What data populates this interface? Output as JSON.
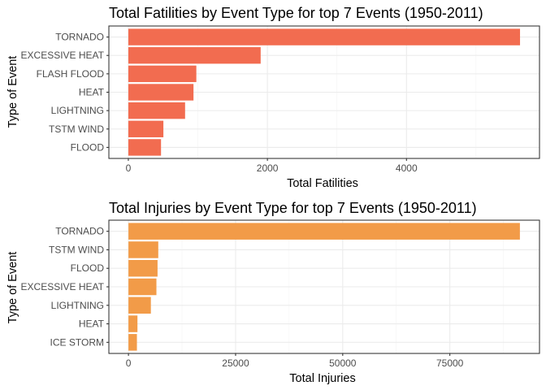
{
  "chart_data": [
    {
      "type": "bar",
      "orientation": "horizontal",
      "title": "Total Fatilities by Event Type for top 7 Events (1950-2011)",
      "xlabel": "Total Fatilities",
      "ylabel": "Type of Event",
      "categories": [
        "TORNADO",
        "EXCESSIVE HEAT",
        "FLASH FLOOD",
        "HEAT",
        "LIGHTNING",
        "TSTM WIND",
        "FLOOD"
      ],
      "values": [
        5633,
        1903,
        978,
        937,
        816,
        504,
        470
      ],
      "x_ticks": [
        0,
        2000,
        4000
      ],
      "x_tick_labels": [
        "0",
        "2000",
        "4000"
      ],
      "xlim": [
        -280,
        5913
      ],
      "bar_color": "#F26C50",
      "grid": true
    },
    {
      "type": "bar",
      "orientation": "horizontal",
      "title": "Total Injuries by Event Type for top 7 Events (1950-2011)",
      "xlabel": "Total Injuries",
      "ylabel": "Type of Event",
      "categories": [
        "TORNADO",
        "TSTM WIND",
        "FLOOD",
        "EXCESSIVE HEAT",
        "LIGHTNING",
        "HEAT",
        "ICE STORM"
      ],
      "values": [
        91346,
        6957,
        6789,
        6525,
        5230,
        2100,
        1975
      ],
      "x_ticks": [
        0,
        25000,
        50000,
        75000
      ],
      "x_tick_labels": [
        "0",
        "25000",
        "50000",
        "75000"
      ],
      "xlim": [
        -4570,
        95920
      ],
      "bar_color": "#F29B48",
      "grid": true
    }
  ]
}
